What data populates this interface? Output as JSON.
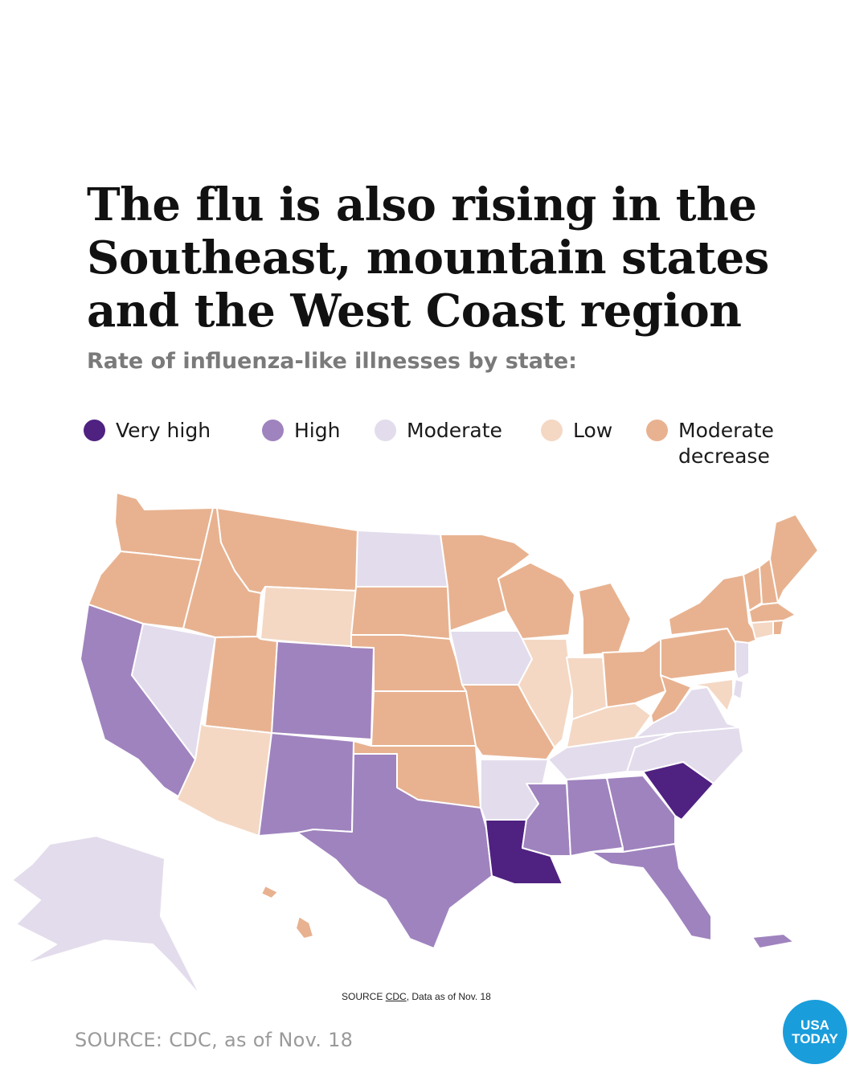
{
  "headline": {
    "line1": "The flu is also rising in the",
    "line2": "Southeast, mountain states",
    "line3": "and the West Coast region"
  },
  "subhead": "Rate of influenza-like illnesses by state:",
  "legend": [
    {
      "label": "Very high",
      "color": "#4f2181"
    },
    {
      "label": "High",
      "color": "#9f83be"
    },
    {
      "label": "Moderate",
      "color": "#e3dcec"
    },
    {
      "label": "Low",
      "color": "#f4d8c4"
    },
    {
      "label": "Moderate\ndecrease",
      "color": "#e8b290"
    }
  ],
  "map": {
    "levels": {
      "very_high": "#4f2181",
      "high": "#9f83be",
      "moderate": "#e3dcec",
      "low": "#f4d8c4",
      "moderate_decrease": "#e8b290"
    },
    "states": {
      "WA": "moderate_decrease",
      "OR": "moderate_decrease",
      "ID": "moderate_decrease",
      "MT": "moderate_decrease",
      "WY": "low",
      "ND": "moderate",
      "SD": "moderate_decrease",
      "NE": "moderate_decrease",
      "KS": "moderate_decrease",
      "OK": "moderate_decrease",
      "MN": "moderate_decrease",
      "IA": "moderate",
      "MO": "moderate_decrease",
      "WI": "moderate_decrease",
      "MI": "moderate_decrease",
      "IL": "low",
      "IN": "low",
      "OH": "moderate_decrease",
      "KY": "low",
      "WV": "moderate_decrease",
      "PA": "moderate_decrease",
      "NY": "moderate_decrease",
      "VT": "moderate_decrease",
      "NH": "moderate_decrease",
      "ME": "moderate_decrease",
      "MA": "moderate_decrease",
      "RI": "moderate_decrease",
      "CT": "low",
      "NJ": "moderate",
      "DE": "moderate",
      "MD": "low",
      "VA": "moderate",
      "NC": "moderate",
      "TN": "moderate",
      "AR": "moderate",
      "NV": "moderate",
      "UT": "moderate_decrease",
      "CO": "high",
      "AZ": "low",
      "NM": "high",
      "TX": "high",
      "CA": "high",
      "LA": "very_high",
      "MS": "high",
      "AL": "high",
      "GA": "high",
      "FL": "high",
      "SC": "very_high",
      "AK": "moderate",
      "HI": "moderate_decrease",
      "PR": "high"
    }
  },
  "map_source": {
    "prefix": "SOURCE ",
    "link": "CDC",
    "suffix": ", Data as of Nov. 18"
  },
  "footer_source": "SOURCE: CDC, as of Nov. 18",
  "logo": {
    "line1": "USA",
    "line2": "TODAY",
    "color": "#1a9ddb"
  }
}
